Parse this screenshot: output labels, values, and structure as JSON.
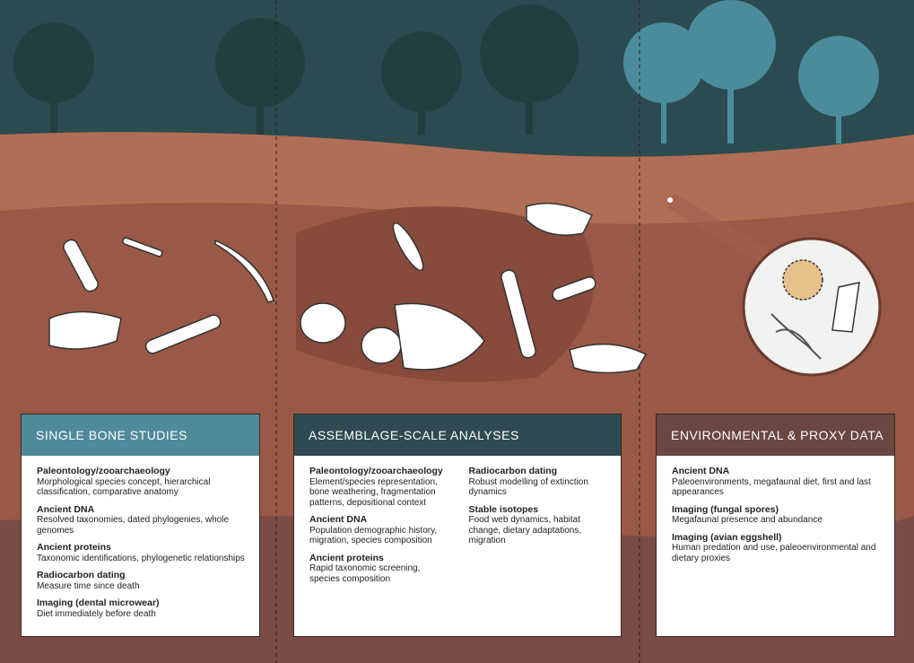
{
  "panels": [
    {
      "title": "SINGLE BONE STUDIES",
      "columns": [
        [
          {
            "heading": "Paleontology/zooarchaeology",
            "text": "Morphological species concept, hierarchical classification, comparative anatomy"
          },
          {
            "heading": "Ancient DNA",
            "text": "Resolved taxonomies, dated phylogenies, whole genomes"
          },
          {
            "heading": "Ancient proteins",
            "text": "Taxonomic identifications, phylogenetic relationships"
          },
          {
            "heading": "Radiocarbon dating",
            "text": "Measure time since death"
          },
          {
            "heading": "Imaging (dental microwear)",
            "text": "Diet immediately before death"
          }
        ]
      ]
    },
    {
      "title": "ASSEMBLAGE-SCALE ANALYSES",
      "columns": [
        [
          {
            "heading": "Paleontology/zooarchaeology",
            "text": "Element/species representation, bone weathering, fragmentation patterns, depositional context"
          },
          {
            "heading": "Ancient DNA",
            "text": "Population demographic history, migration, species composition"
          },
          {
            "heading": "Ancient proteins",
            "text": "Rapid taxonomic screening, species composition"
          }
        ],
        [
          {
            "heading": "Radiocarbon dating",
            "text": "Robust modelling of extinction dynamics"
          },
          {
            "heading": "Stable isotopes",
            "text": "Food web dynamics, habitat change, dietary adaptations, migration"
          }
        ]
      ]
    },
    {
      "title": "ENVIRONMENTAL & PROXY DATA",
      "columns": [
        [
          {
            "heading": "Ancient DNA",
            "text": "Paleoenvironments, megafaunal diet, first and last appearances"
          },
          {
            "heading": "Imaging (fungal spores)",
            "text": "Megafaunal presence and abundance"
          },
          {
            "heading": "Imaging (avian eggshell)",
            "text": "Human predation and use, paleoenvironmental and dietary proxies"
          }
        ]
      ]
    }
  ]
}
